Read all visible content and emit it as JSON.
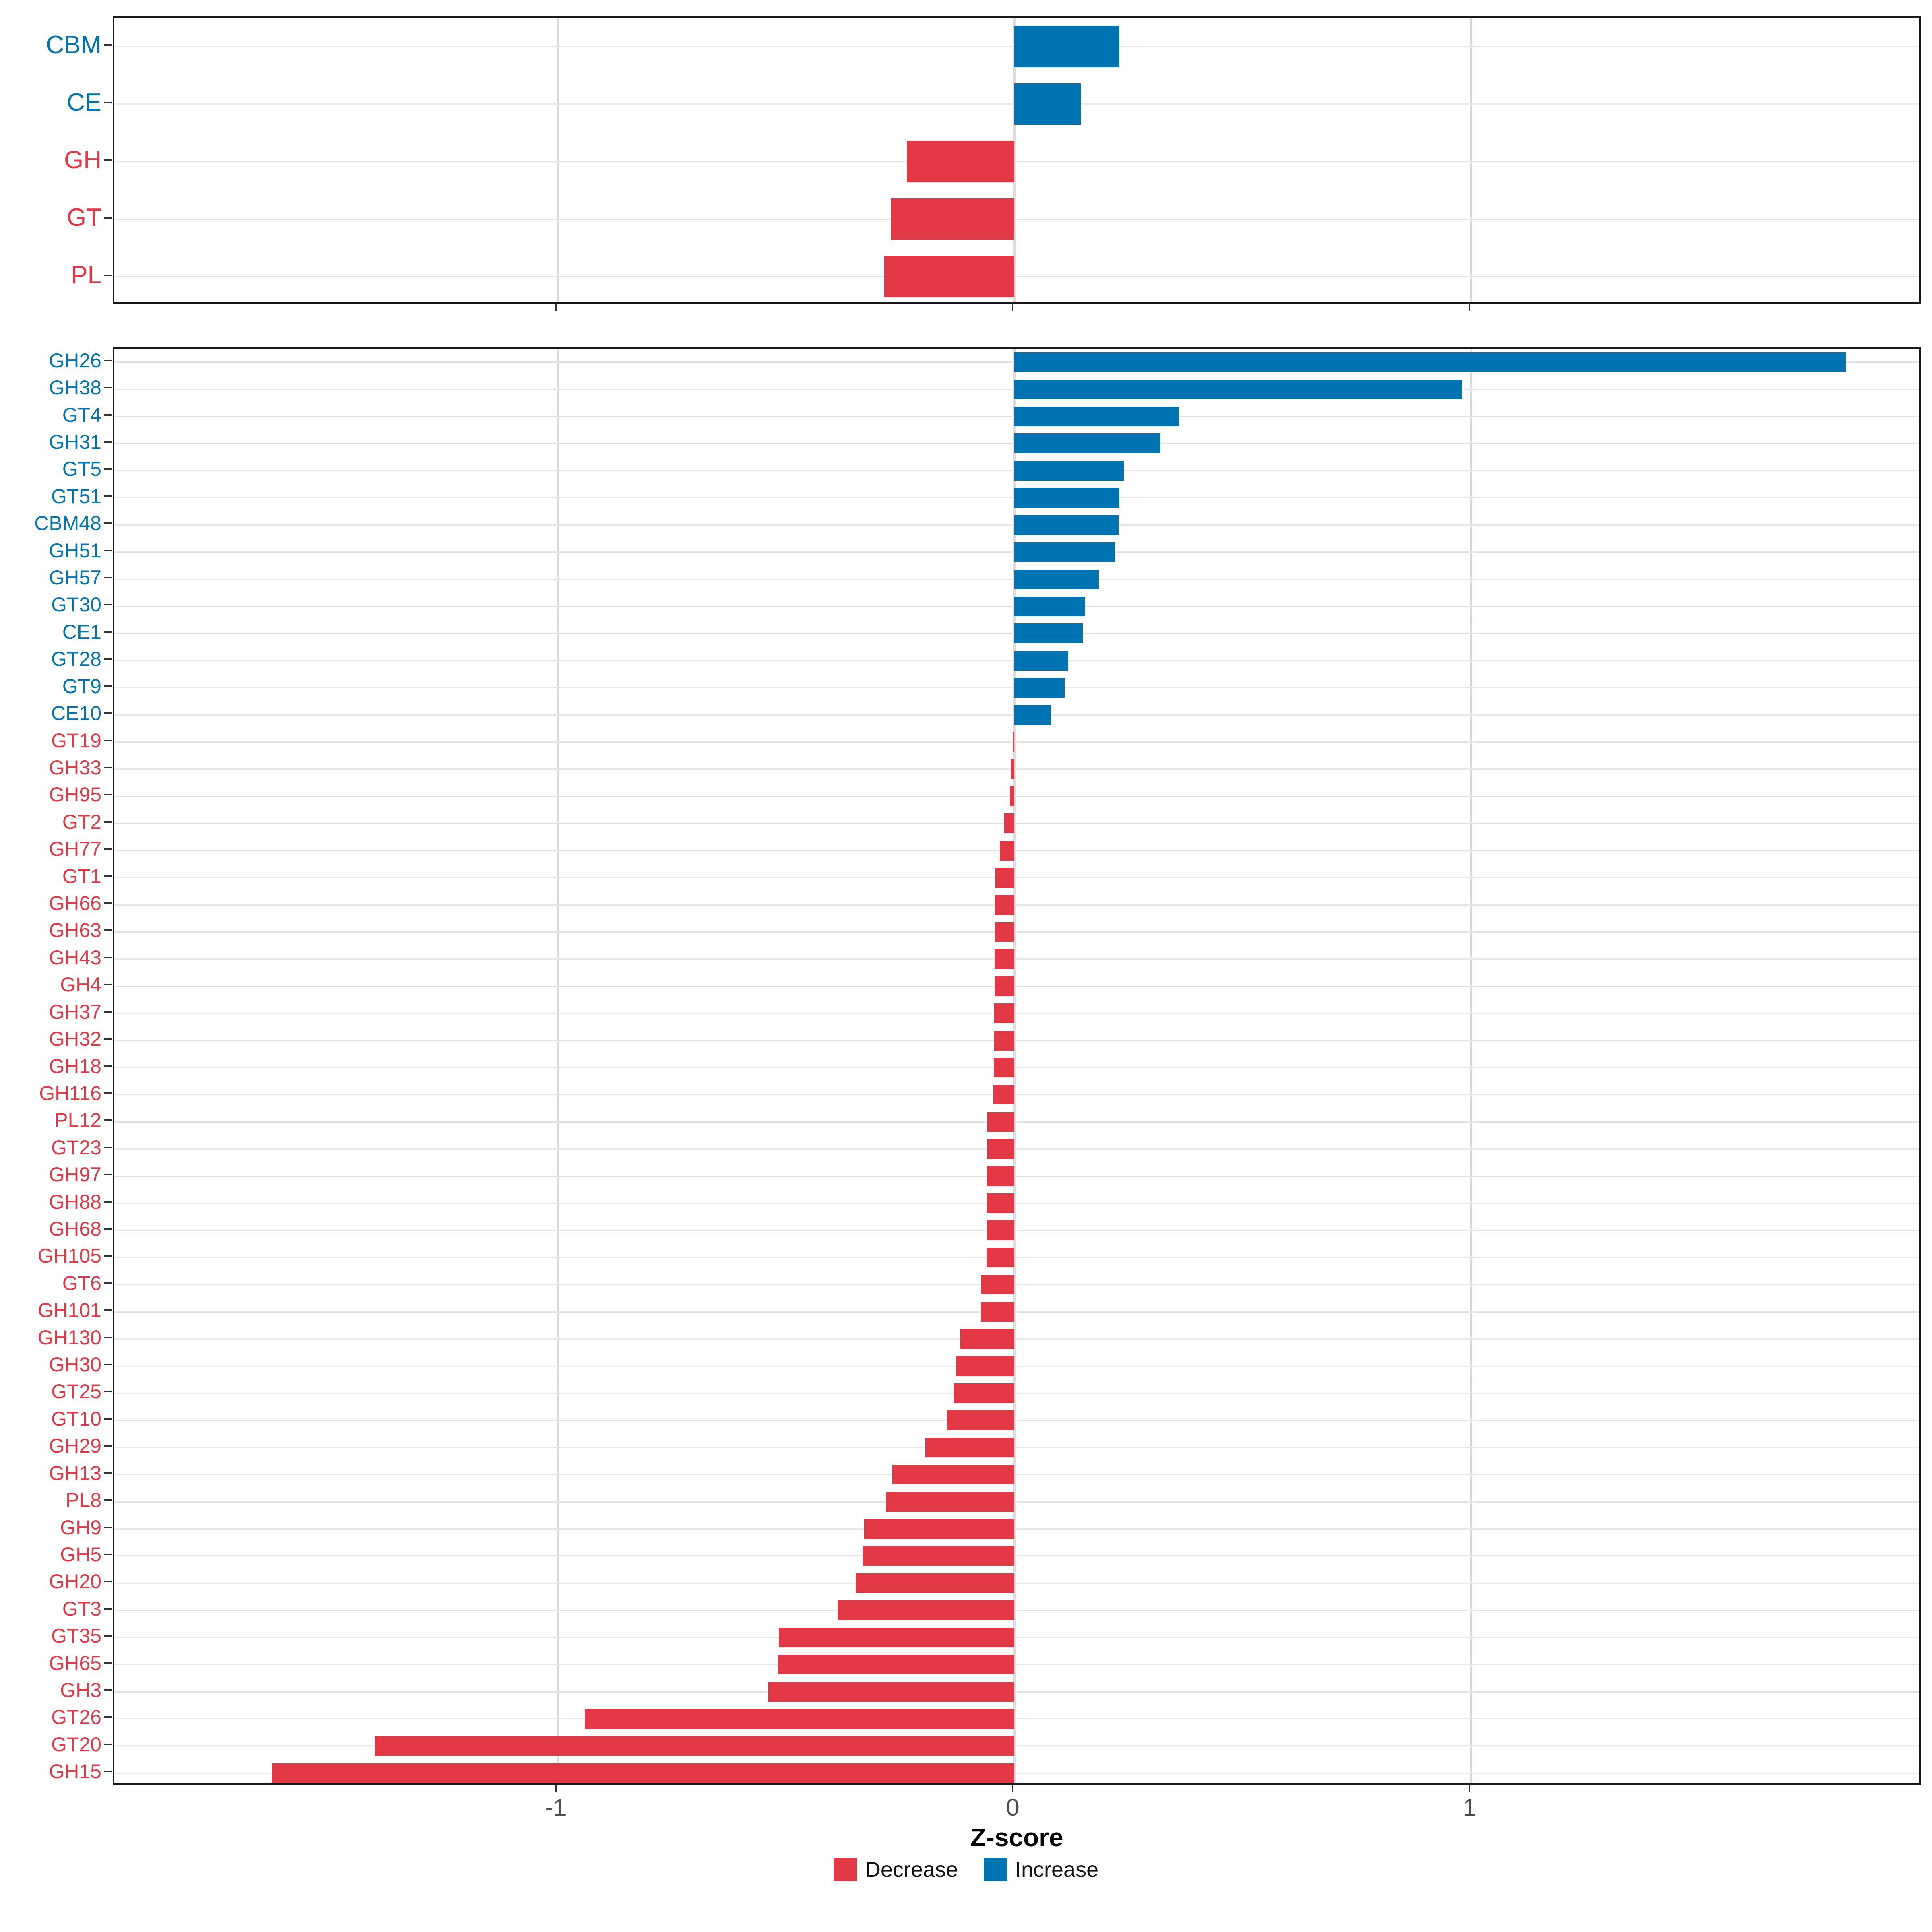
{
  "chart_data": {
    "type": "bar",
    "orientation": "horizontal",
    "title": "",
    "xlabel": "Z-score",
    "x_ticks": [
      -1,
      0,
      1
    ],
    "x_tick_labels": [
      "-1",
      "0",
      "1"
    ],
    "x_range": [
      -1.97,
      1.99
    ],
    "grid": true,
    "legend_position": "bottom",
    "colors": {
      "decrease": "#E23845",
      "increase": "#0073B2"
    },
    "legend": [
      {
        "key": "decrease",
        "label": "Decrease"
      },
      {
        "key": "increase",
        "label": "Increase"
      }
    ],
    "panels": [
      {
        "name": "enzyme-classes",
        "categories": [
          "CBM",
          "CE",
          "GH",
          "GT",
          "PL"
        ],
        "values": [
          0.23,
          0.145,
          -0.235,
          -0.27,
          -0.285
        ]
      },
      {
        "name": "enzyme-families",
        "categories": [
          "GH26",
          "GH38",
          "GT4",
          "GH31",
          "GT5",
          "GT51",
          "CBM48",
          "GH51",
          "GH57",
          "GT30",
          "CE1",
          "GT28",
          "GT9",
          "CE10",
          "GT19",
          "GH33",
          "GH95",
          "GT2",
          "GH77",
          "GT1",
          "GH66",
          "GH63",
          "GH43",
          "GH4",
          "GH37",
          "GH32",
          "GH18",
          "GH116",
          "PL12",
          "GT23",
          "GH97",
          "GH88",
          "GH68",
          "GH105",
          "GT6",
          "GH101",
          "GH130",
          "GH30",
          "GT25",
          "GT10",
          "GH29",
          "GH13",
          "PL8",
          "GH9",
          "GH5",
          "GH20",
          "GT3",
          "GT35",
          "GH65",
          "GH3",
          "GT26",
          "GT20",
          "GH15"
        ],
        "values": [
          1.82,
          0.98,
          0.36,
          0.32,
          0.24,
          0.23,
          0.228,
          0.22,
          0.185,
          0.155,
          0.15,
          0.118,
          0.11,
          0.08,
          -0.003,
          -0.007,
          -0.01,
          -0.022,
          -0.032,
          -0.041,
          -0.042,
          -0.042,
          -0.043,
          -0.043,
          -0.044,
          -0.044,
          -0.045,
          -0.046,
          -0.059,
          -0.059,
          -0.06,
          -0.06,
          -0.06,
          -0.061,
          -0.072,
          -0.073,
          -0.118,
          -0.128,
          -0.133,
          -0.147,
          -0.195,
          -0.267,
          -0.281,
          -0.329,
          -0.331,
          -0.347,
          -0.387,
          -0.515,
          -0.517,
          -0.538,
          -0.94,
          -1.4,
          -1.625
        ]
      }
    ]
  }
}
